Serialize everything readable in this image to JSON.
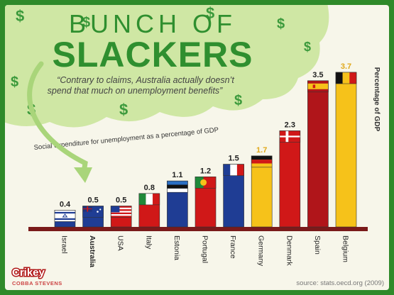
{
  "header": {
    "title_top": "BUNCH OF",
    "title_main": "SLACKERS",
    "quote_line1": "“Contrary to claims, Australia actually doesn’t",
    "quote_line2": "spend that much on unemployment benefits”"
  },
  "dollar_glyph": "$",
  "chart_subtitle": "Social expenditure for unemployment as a percentage of GDP",
  "credits": {
    "brand": "Crikey",
    "artist": "COBBA STEVENS",
    "source": "source: stats.oecd.org (2009)"
  },
  "colors": {
    "background": "#f7f6ea",
    "border": "#2f8a2a",
    "cloud": "#cfe7a4",
    "title": "#2f8f2f",
    "dollar": "#3c9a3c",
    "axis": "#7a1a1a",
    "value_text": "#222222",
    "blue": "#1f3d94",
    "red": "#d01818",
    "yellow": "#f6c21a",
    "darkred": "#b0151a",
    "white": "#ffffff"
  },
  "chart_data": {
    "type": "bar",
    "ylabel": "Percentage of GDP",
    "ylim": [
      0,
      3.7
    ],
    "categories": [
      "Israel",
      "Australia",
      "USA",
      "Italy",
      "Estonia",
      "Portugal",
      "France",
      "Germany",
      "Denmark",
      "Spain",
      "Belgium"
    ],
    "value_labels": [
      "0.4",
      "0.5",
      "0.5",
      "0.8",
      "1.1",
      "1.2",
      "1.5",
      "1.7",
      "2.3",
      "3.5",
      "3.7"
    ],
    "values": [
      0.4,
      0.5,
      0.5,
      0.8,
      1.1,
      1.2,
      1.5,
      1.7,
      2.3,
      3.5,
      3.7
    ],
    "bar_colors": [
      "blue",
      "blue",
      "red",
      "red",
      "blue",
      "red",
      "blue",
      "yellow",
      "red",
      "darkred",
      "yellow"
    ],
    "label_colors": [
      "blue",
      "blue",
      "red",
      "red",
      "blue",
      "red",
      "blue",
      "yellow",
      "red",
      "darkred",
      "yellow"
    ],
    "highlight": "Australia",
    "flags": [
      "israel",
      "australia",
      "usa",
      "italy",
      "estonia",
      "portugal",
      "france",
      "germany",
      "denmark",
      "spain",
      "belgium"
    ]
  }
}
